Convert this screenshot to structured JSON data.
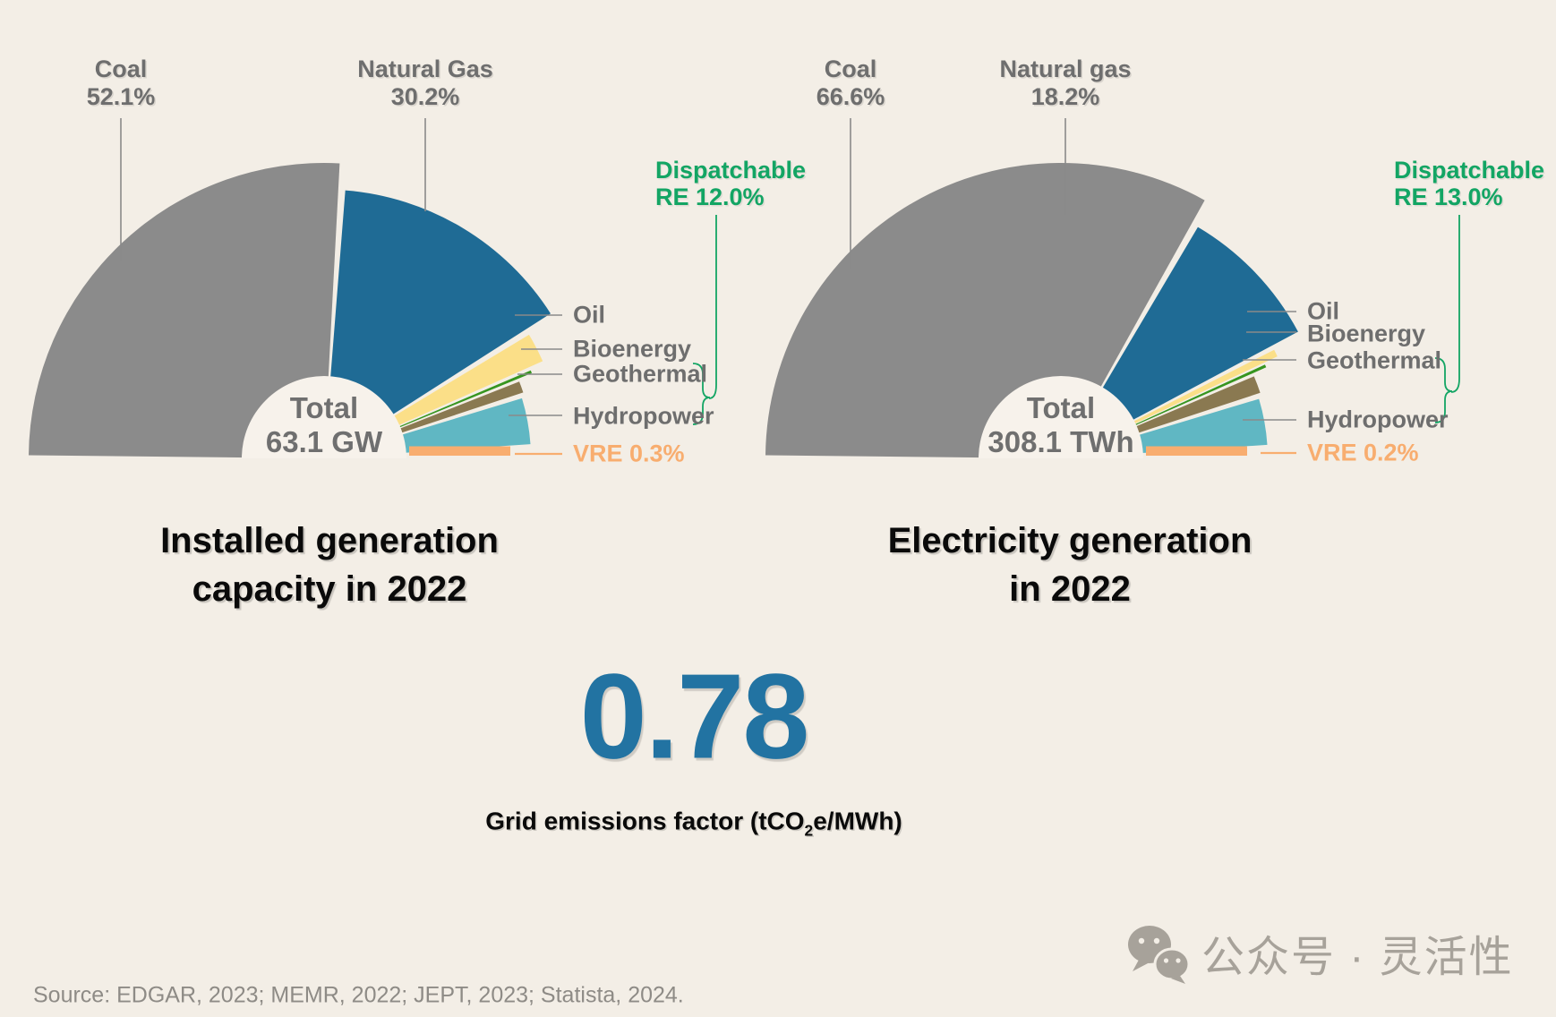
{
  "colors": {
    "background": "#F3EEE6",
    "inner_circle": "#F7F2EB",
    "coal": "#8B8B8B",
    "natural_gas": "#1F6B95",
    "oil": "#FBDF88",
    "bioenergy": "#36951F",
    "geothermal": "#8A7951",
    "hydropower": "#60B7C3",
    "vre": "#F8AD6F",
    "label_gray": "#6E6E6E",
    "green_accent": "#13A564",
    "metric_blue": "#2273A2",
    "leader_gray": "#8A8A8A",
    "source_gray": "#8E8B86",
    "badge_gray": "#A7A29A"
  },
  "charts": [
    {
      "title_line1": "Installed generation",
      "title_line2": "capacity in 2022",
      "center_label": "Total",
      "center_value": "63.1 GW",
      "callouts": {
        "coal_name": "Coal",
        "coal_pct": "52.1%",
        "gas_name": "Natural Gas",
        "gas_pct": "30.2%",
        "dispatchable_line1": "Dispatchable",
        "dispatchable_line2": "RE 12.0%",
        "oil": "Oil",
        "bioenergy": "Bioenergy",
        "geothermal": "Geothermal",
        "hydropower": "Hydropower",
        "vre": "VRE 0.3%"
      }
    },
    {
      "title_line1": "Electricity generation",
      "title_line2": "in 2022",
      "center_label": "Total",
      "center_value": "308.1 TWh",
      "callouts": {
        "coal_name": "Coal",
        "coal_pct": "66.6%",
        "gas_name": "Natural gas",
        "gas_pct": "18.2%",
        "dispatchable_line1": "Dispatchable",
        "dispatchable_line2": "RE 13.0%",
        "oil": "Oil",
        "bioenergy": "Bioenergy",
        "geothermal": "Geothermal",
        "hydropower": "Hydropower",
        "vre": "VRE 0.2%"
      }
    }
  ],
  "metric": {
    "value": "0.78",
    "caption_pre": "Grid emissions factor (tCO",
    "caption_sub": "2",
    "caption_post": "e/MWh)"
  },
  "source": "Source: EDGAR, 2023; MEMR, 2022; JEPT, 2023; Statista, 2024.",
  "badge": {
    "text": "公众号 · 灵活性"
  },
  "chart_data": [
    {
      "type": "pie",
      "variant": "half_fan_donut",
      "title": "Installed generation capacity in 2022",
      "total_label": "Total",
      "total_value": 63.1,
      "unit": "GW",
      "angle_span_deg": 180,
      "categories": [
        "Coal",
        "Natural Gas",
        "Oil",
        "Bioenergy",
        "Geothermal",
        "Hydropower",
        "VRE"
      ],
      "values": [
        52.1,
        30.2,
        4.8,
        0.6,
        2.5,
        9.5,
        0.3
      ],
      "labeled_values": {
        "Coal": 52.1,
        "Natural Gas": 30.2,
        "Dispatchable RE": 12.0,
        "VRE": 0.3
      },
      "dispatchable_brace_spans": [
        "Geothermal",
        "Hydropower"
      ],
      "colors": [
        "#8B8B8B",
        "#1F6B95",
        "#FBDF88",
        "#36951F",
        "#8A7951",
        "#60B7C3",
        "#F8AD6F"
      ],
      "radius_frac": [
        1.0,
        0.91,
        0.81,
        0.76,
        0.71,
        0.7,
        0.62
      ],
      "legend_position": "right"
    },
    {
      "type": "pie",
      "variant": "half_fan_donut",
      "title": "Electricity generation in 2022",
      "total_label": "Total",
      "total_value": 308.1,
      "unit": "TWh",
      "angle_span_deg": 180,
      "categories": [
        "Coal",
        "Natural Gas",
        "Oil",
        "Bioenergy",
        "Geothermal",
        "Hydropower",
        "VRE"
      ],
      "values": [
        66.6,
        18.2,
        1.4,
        0.6,
        3.5,
        9.5,
        0.2
      ],
      "labeled_values": {
        "Coal": 66.6,
        "Natural gas": 18.2,
        "Dispatchable RE": 13.0,
        "VRE": 0.2
      },
      "dispatchable_brace_spans": [
        "Geothermal",
        "Hydropower"
      ],
      "colors": [
        "#8B8B8B",
        "#1F6B95",
        "#FBDF88",
        "#36951F",
        "#8A7951",
        "#60B7C3",
        "#F8AD6F"
      ],
      "radius_frac": [
        1.0,
        0.91,
        0.81,
        0.76,
        0.71,
        0.7,
        0.62
      ],
      "legend_position": "right"
    }
  ]
}
